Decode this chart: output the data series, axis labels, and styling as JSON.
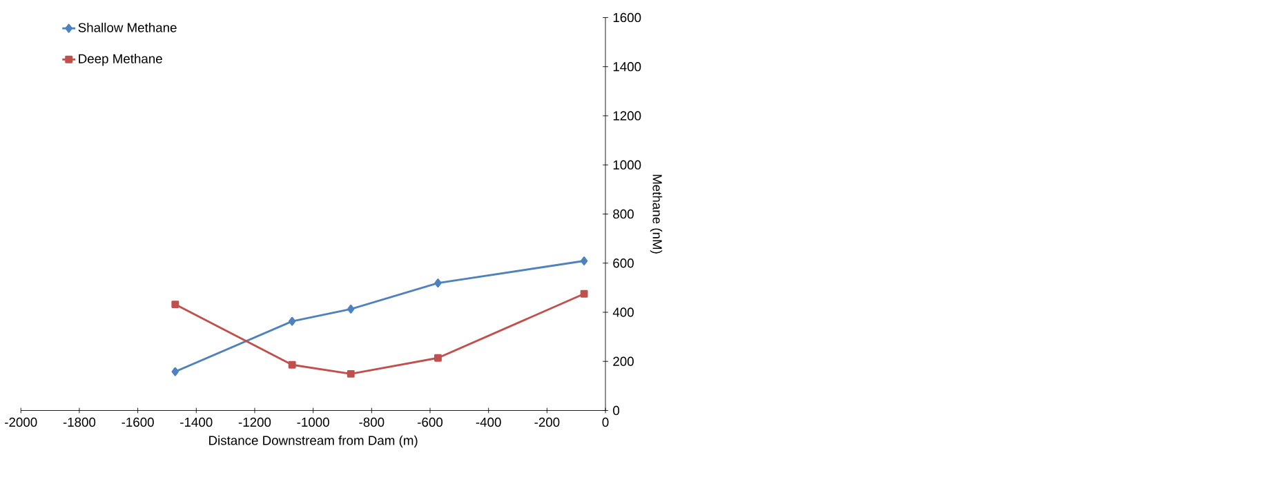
{
  "chart_data": {
    "type": "line",
    "xlabel": "Distance Downstream from Dam (m)",
    "ylabel": "Methane (nM)",
    "xlim": [
      -2000,
      0
    ],
    "xticks": [
      -2000,
      -1800,
      -1600,
      -1400,
      -1200,
      -1000,
      -800,
      -600,
      -400,
      -200,
      0
    ],
    "ylim": [
      0,
      1600
    ],
    "yticks": [
      0,
      200,
      400,
      600,
      800,
      1000,
      1200,
      1400,
      1600
    ],
    "legend": "top left",
    "grid": false,
    "line_style": "solid",
    "series": [
      {
        "name": "Shallow Methane",
        "color": "#4f81bd",
        "marker": "diamond",
        "x": [
          -1472,
          -1072,
          -871,
          -573,
          -73
        ],
        "values": [
          158,
          363,
          413,
          519,
          609
        ]
      },
      {
        "name": "Deep Methane",
        "color": "#c0504d",
        "marker": "square",
        "x": [
          -1472,
          -1072,
          -871,
          -573,
          -73
        ],
        "values": [
          432,
          186,
          149,
          214,
          475
        ]
      }
    ]
  }
}
